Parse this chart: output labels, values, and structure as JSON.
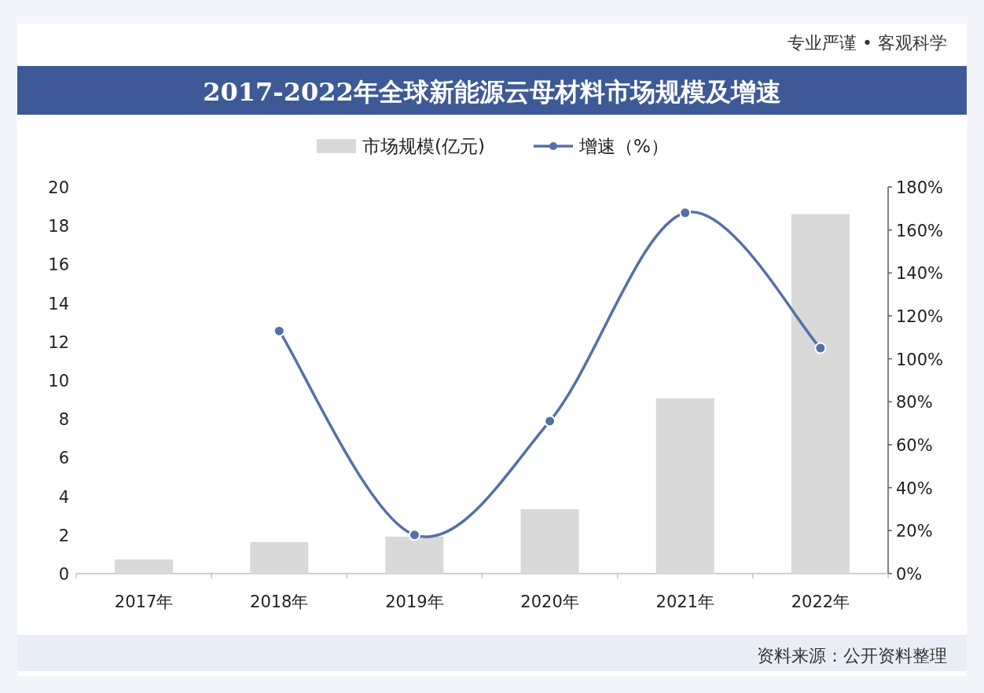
{
  "chart_data": {
    "type": "bar",
    "title": "2017-2022年全球新能源云母材料市场规模及增速",
    "categories": [
      "2017年",
      "2018年",
      "2019年",
      "2020年",
      "2021年",
      "2022年"
    ],
    "series": [
      {
        "name": "市场规模(亿元)",
        "color": "#d9d9d9",
        "values": [
          0.73,
          1.63,
          1.91,
          3.33,
          9.07,
          18.6
        ]
      },
      {
        "name": "增速（%）",
        "type": "line",
        "axis": "y2",
        "color": "#5470a8",
        "values": [
          null,
          113,
          18,
          71,
          168,
          105
        ]
      }
    ],
    "ylim": [
      0,
      20
    ],
    "yticks": [
      0,
      2,
      4,
      6,
      8,
      10,
      12,
      14,
      16,
      18,
      20
    ],
    "y2lim": [
      0,
      180
    ],
    "y2ticks": [
      {
        "value": 0,
        "label": "0%"
      },
      {
        "value": 20,
        "label": "20%"
      },
      {
        "value": 40,
        "label": "40%"
      },
      {
        "value": 60,
        "label": "60%"
      },
      {
        "value": 80,
        "label": "80%"
      },
      {
        "value": 100,
        "label": "100%"
      },
      {
        "value": 120,
        "label": "120%"
      },
      {
        "value": 140,
        "label": "140%"
      },
      {
        "value": 160,
        "label": "160%"
      },
      {
        "value": 180,
        "label": "180%"
      }
    ],
    "marker": "circle",
    "legend": "top",
    "annotations": [
      "专业严谨 • 客观科学",
      "资料来源：公开资料整理"
    ]
  }
}
